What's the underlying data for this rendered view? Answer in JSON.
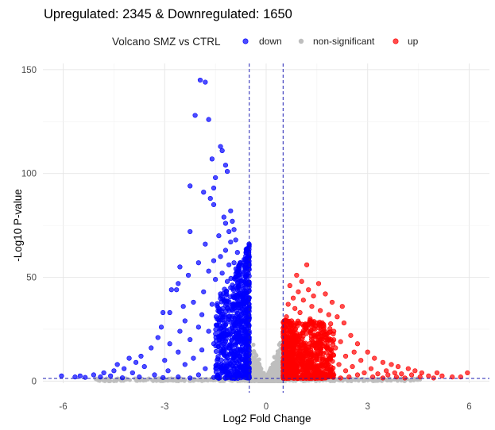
{
  "chart_data": {
    "type": "scatter",
    "title": "Upregulated: 2345 & Downregulated: 1650",
    "xlabel": "Log2 Fold Change",
    "ylabel": "-Log10 P-value",
    "xlim": [
      -6.6,
      6.6
    ],
    "ylim": [
      -1,
      153
    ],
    "x_ticks": [
      -6,
      -3,
      0,
      3,
      6
    ],
    "y_ticks": [
      0,
      50,
      100,
      150
    ],
    "grid": true,
    "legend": {
      "title": "Volcano SMZ vs CTRL",
      "placement": "top",
      "entries": [
        {
          "name": "down",
          "color": "#0000ff"
        },
        {
          "name": "non-significant",
          "color": "#bebebe"
        },
        {
          "name": "up",
          "color": "#ff0000"
        }
      ]
    },
    "thresholds": {
      "log2fc": [
        -0.5,
        0.5
      ],
      "neg_log10_p": 1.3
    },
    "series": [
      {
        "name": "down",
        "color": "#0000ff",
        "points": [
          [
            -1.95,
            145
          ],
          [
            -1.8,
            144
          ],
          [
            -2.1,
            128
          ],
          [
            -1.7,
            126
          ],
          [
            -1.35,
            113
          ],
          [
            -1.3,
            111
          ],
          [
            -1.6,
            107
          ],
          [
            -1.2,
            104
          ],
          [
            -1.15,
            101
          ],
          [
            -1.5,
            98
          ],
          [
            -1.55,
            93
          ],
          [
            -2.25,
            94
          ],
          [
            -1.85,
            91
          ],
          [
            -1.65,
            88
          ],
          [
            -1.55,
            85
          ],
          [
            -1.05,
            82
          ],
          [
            -1.25,
            79
          ],
          [
            -1.0,
            77
          ],
          [
            -1.2,
            76
          ],
          [
            -0.95,
            73
          ],
          [
            -1.1,
            72
          ],
          [
            -2.25,
            72
          ],
          [
            -1.4,
            70
          ],
          [
            -0.9,
            68
          ],
          [
            -1.05,
            67
          ],
          [
            -1.8,
            66
          ],
          [
            -1.2,
            63
          ],
          [
            -0.85,
            62
          ],
          [
            -1.35,
            60
          ],
          [
            -1.55,
            58
          ],
          [
            -0.95,
            57
          ],
          [
            -2.0,
            57
          ],
          [
            -1.1,
            56
          ],
          [
            -2.55,
            55
          ],
          [
            -0.8,
            54
          ],
          [
            -1.7,
            53
          ],
          [
            -1.3,
            52
          ],
          [
            -2.3,
            51
          ],
          [
            -0.9,
            50
          ],
          [
            -1.5,
            49
          ],
          [
            -1.15,
            48
          ],
          [
            -2.6,
            47
          ],
          [
            -0.75,
            46
          ],
          [
            -1.05,
            45
          ],
          [
            -2.8,
            44
          ],
          [
            -2.65,
            44
          ],
          [
            -1.85,
            43
          ],
          [
            -1.35,
            42
          ],
          [
            -0.85,
            41
          ],
          [
            -1.25,
            39
          ],
          [
            -2.15,
            38
          ],
          [
            -0.7,
            37
          ],
          [
            -1.6,
            37
          ],
          [
            -2.45,
            36
          ],
          [
            -0.95,
            35
          ],
          [
            -1.0,
            34
          ],
          [
            -3.05,
            33
          ],
          [
            -2.85,
            33
          ],
          [
            -1.9,
            32
          ],
          [
            -0.8,
            31
          ],
          [
            -1.45,
            30
          ],
          [
            -2.4,
            29
          ],
          [
            -0.75,
            28
          ],
          [
            -1.2,
            27
          ],
          [
            -2.0,
            26
          ],
          [
            -3.1,
            26
          ],
          [
            -0.65,
            25
          ],
          [
            -1.7,
            24
          ],
          [
            -2.55,
            24
          ],
          [
            -0.9,
            23
          ],
          [
            -1.3,
            22
          ],
          [
            -3.2,
            21
          ],
          [
            -2.25,
            20
          ],
          [
            -0.7,
            19
          ],
          [
            -1.55,
            18
          ],
          [
            -2.85,
            18
          ],
          [
            -1.05,
            17
          ],
          [
            -3.4,
            16
          ],
          [
            -0.6,
            15
          ],
          [
            -1.9,
            15
          ],
          [
            -2.6,
            14
          ],
          [
            -1.25,
            13
          ],
          [
            -0.8,
            12
          ],
          [
            -3.7,
            12
          ],
          [
            -2.15,
            11
          ],
          [
            -4.05,
            11
          ],
          [
            -0.65,
            10
          ],
          [
            -1.45,
            10
          ],
          [
            -3.0,
            10
          ],
          [
            -3.85,
            9
          ],
          [
            -4.4,
            8
          ],
          [
            -1.05,
            8
          ],
          [
            -2.4,
            8
          ],
          [
            -3.6,
            7
          ],
          [
            -4.2,
            6
          ],
          [
            -0.7,
            6
          ],
          [
            -1.8,
            6
          ],
          [
            -4.5,
            5
          ],
          [
            -2.9,
            5
          ],
          [
            -3.95,
            4
          ],
          [
            -4.8,
            4
          ],
          [
            -1.3,
            4
          ],
          [
            -0.6,
            3
          ],
          [
            -3.3,
            3
          ],
          [
            -5.1,
            3
          ],
          [
            -2.0,
            3
          ],
          [
            -4.6,
            2.5
          ],
          [
            -5.5,
            2.5
          ],
          [
            -6.05,
            2.5
          ],
          [
            -5.65,
            2
          ],
          [
            -1.0,
            2
          ],
          [
            -2.6,
            2
          ],
          [
            -3.75,
            2
          ],
          [
            -4.9,
            2
          ],
          [
            -0.55,
            2
          ],
          [
            -5.35,
            1.8
          ],
          [
            -1.55,
            1.8
          ],
          [
            -3.05,
            1.7
          ],
          [
            -0.75,
            1.6
          ],
          [
            -4.25,
            1.6
          ],
          [
            -2.25,
            1.5
          ]
        ]
      },
      {
        "name": "up",
        "color": "#ff0000",
        "points": [
          [
            1.2,
            56
          ],
          [
            0.9,
            51
          ],
          [
            1.05,
            48
          ],
          [
            1.55,
            47
          ],
          [
            0.7,
            46
          ],
          [
            1.25,
            44
          ],
          [
            0.95,
            43
          ],
          [
            1.75,
            42
          ],
          [
            1.4,
            41
          ],
          [
            0.8,
            40
          ],
          [
            1.1,
            39
          ],
          [
            1.95,
            38
          ],
          [
            0.65,
            37
          ],
          [
            1.35,
            36
          ],
          [
            2.25,
            36
          ],
          [
            0.85,
            35
          ],
          [
            1.6,
            34
          ],
          [
            1.0,
            33
          ],
          [
            1.85,
            32
          ],
          [
            0.6,
            31
          ],
          [
            2.1,
            31
          ],
          [
            1.3,
            30
          ],
          [
            0.75,
            29
          ],
          [
            1.5,
            28
          ],
          [
            2.3,
            28
          ],
          [
            1.15,
            27
          ],
          [
            0.55,
            26
          ],
          [
            1.7,
            25
          ],
          [
            2.0,
            24
          ],
          [
            0.9,
            23
          ],
          [
            1.4,
            22
          ],
          [
            2.5,
            22
          ],
          [
            0.65,
            21
          ],
          [
            1.8,
            20
          ],
          [
            1.05,
            19
          ],
          [
            2.2,
            19
          ],
          [
            2.7,
            18
          ],
          [
            0.6,
            17
          ],
          [
            1.45,
            17
          ],
          [
            2.05,
            16
          ],
          [
            0.8,
            15
          ],
          [
            1.25,
            15
          ],
          [
            2.6,
            14
          ],
          [
            3.0,
            14
          ],
          [
            0.55,
            13
          ],
          [
            1.6,
            13
          ],
          [
            2.35,
            12
          ],
          [
            0.95,
            12
          ],
          [
            3.2,
            11
          ],
          [
            1.9,
            11
          ],
          [
            0.7,
            10
          ],
          [
            2.8,
            10
          ],
          [
            1.35,
            9
          ],
          [
            3.45,
            9
          ],
          [
            2.15,
            8
          ],
          [
            0.6,
            8
          ],
          [
            3.7,
            8
          ],
          [
            1.1,
            7
          ],
          [
            2.55,
            7
          ],
          [
            3.9,
            7
          ],
          [
            0.85,
            6
          ],
          [
            3.1,
            6
          ],
          [
            1.75,
            6
          ],
          [
            4.2,
            6
          ],
          [
            3.55,
            5
          ],
          [
            2.35,
            5
          ],
          [
            4.4,
            5
          ],
          [
            0.65,
            4
          ],
          [
            1.5,
            4
          ],
          [
            2.9,
            4
          ],
          [
            3.8,
            4
          ],
          [
            4.6,
            4
          ],
          [
            5.05,
            4
          ],
          [
            3.3,
            3.5
          ],
          [
            4.0,
            3.5
          ],
          [
            0.55,
            3
          ],
          [
            2.0,
            3
          ],
          [
            2.7,
            3
          ],
          [
            3.6,
            3
          ],
          [
            4.3,
            3
          ],
          [
            4.8,
            2.5
          ],
          [
            5.2,
            2.5
          ],
          [
            5.95,
            4
          ],
          [
            0.75,
            2
          ],
          [
            1.25,
            2
          ],
          [
            1.85,
            2
          ],
          [
            2.45,
            2
          ],
          [
            3.15,
            2
          ],
          [
            3.85,
            2
          ],
          [
            4.55,
            2
          ],
          [
            5.5,
            2
          ],
          [
            5.75,
            2
          ],
          [
            0.6,
            1.6
          ],
          [
            1.4,
            1.6
          ],
          [
            2.2,
            1.5
          ],
          [
            3.45,
            1.5
          ],
          [
            4.1,
            1.5
          ],
          [
            4.95,
            1.5
          ]
        ]
      }
    ]
  }
}
